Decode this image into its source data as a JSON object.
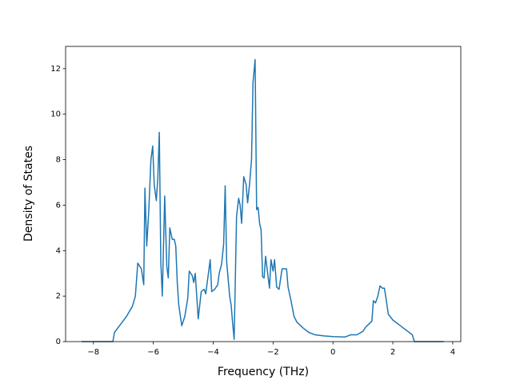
{
  "chart_data": {
    "type": "line",
    "xlabel": "Frequency (THz)",
    "ylabel": "Density of States",
    "xlim": [
      -8.93,
      4.27
    ],
    "ylim": [
      0,
      12.98
    ],
    "xticks": [
      {
        "value": -8,
        "label": "−8"
      },
      {
        "value": -6,
        "label": "−6"
      },
      {
        "value": -4,
        "label": "−4"
      },
      {
        "value": -2,
        "label": "−2"
      },
      0,
      2,
      4
    ],
    "yticks": [
      0,
      2,
      4,
      6,
      8,
      10,
      12
    ],
    "color": "#1f77b4",
    "x": [
      -8.4,
      -7.35,
      -7.3,
      -7.1,
      -6.9,
      -6.7,
      -6.6,
      -6.52,
      -6.4,
      -6.32,
      -6.28,
      -6.22,
      -6.15,
      -6.08,
      -6.02,
      -5.97,
      -5.9,
      -5.85,
      -5.8,
      -5.75,
      -5.7,
      -5.62,
      -5.55,
      -5.5,
      -5.45,
      -5.37,
      -5.3,
      -5.25,
      -5.2,
      -5.15,
      -5.05,
      -4.95,
      -4.85,
      -4.8,
      -4.7,
      -4.65,
      -4.6,
      -4.5,
      -4.4,
      -4.3,
      -4.25,
      -4.1,
      -4.05,
      -3.95,
      -3.85,
      -3.8,
      -3.72,
      -3.65,
      -3.6,
      -3.55,
      -3.45,
      -3.4,
      -3.35,
      -3.3,
      -3.22,
      -3.15,
      -3.1,
      -3.05,
      -2.98,
      -2.9,
      -2.85,
      -2.78,
      -2.72,
      -2.67,
      -2.6,
      -2.55,
      -2.5,
      -2.45,
      -2.4,
      -2.35,
      -2.3,
      -2.25,
      -2.18,
      -2.12,
      -2.07,
      -2.0,
      -1.95,
      -1.88,
      -1.8,
      -1.7,
      -1.55,
      -1.5,
      -1.4,
      -1.3,
      -1.2,
      -1.0,
      -0.8,
      -0.6,
      -0.3,
      0,
      0.4,
      0.6,
      0.8,
      1.0,
      1.1,
      1.3,
      1.35,
      1.42,
      1.5,
      1.57,
      1.65,
      1.72,
      1.85,
      2.0,
      2.2,
      2.5,
      2.65,
      2.72,
      3.7
    ],
    "values": [
      0,
      0,
      0.4,
      0.75,
      1.1,
      1.55,
      2.0,
      3.45,
      3.2,
      2.5,
      6.75,
      4.2,
      5.8,
      8.0,
      8.6,
      6.9,
      6.2,
      7.2,
      9.2,
      3.5,
      2.0,
      6.4,
      3.3,
      2.8,
      5.0,
      4.5,
      4.5,
      4.2,
      2.6,
      1.6,
      0.7,
      1.1,
      1.9,
      3.1,
      2.9,
      2.6,
      3.0,
      1.0,
      2.2,
      2.3,
      2.1,
      3.6,
      2.2,
      2.3,
      2.5,
      3.0,
      3.4,
      4.3,
      6.85,
      3.5,
      2.0,
      1.6,
      0.8,
      0.1,
      5.5,
      6.3,
      6.0,
      5.2,
      7.25,
      6.9,
      6.1,
      7.0,
      8.0,
      11.4,
      12.4,
      5.8,
      5.9,
      5.2,
      4.9,
      2.85,
      2.8,
      3.75,
      3.0,
      2.35,
      3.6,
      3.1,
      3.6,
      2.4,
      2.3,
      3.2,
      3.2,
      2.4,
      1.8,
      1.1,
      0.85,
      0.6,
      0.4,
      0.3,
      0.25,
      0.22,
      0.2,
      0.3,
      0.3,
      0.45,
      0.65,
      0.9,
      1.8,
      1.7,
      2.0,
      2.45,
      2.35,
      2.35,
      1.2,
      0.95,
      0.75,
      0.45,
      0.3,
      0,
      0
    ]
  }
}
